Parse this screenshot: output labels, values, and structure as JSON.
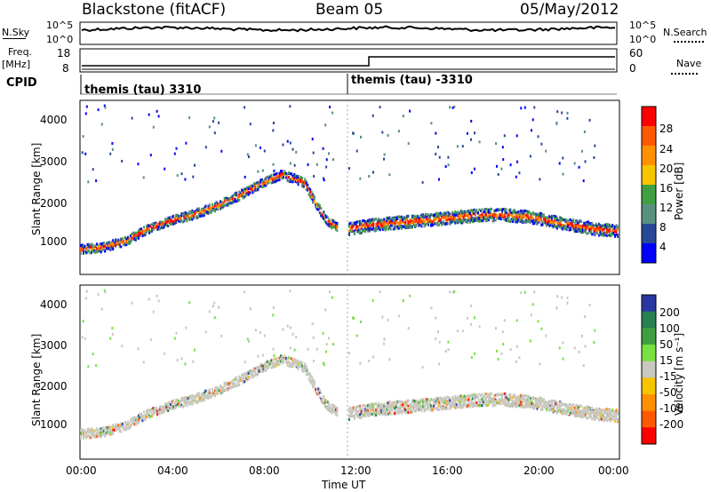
{
  "header": {
    "station": "Blackstone (fitACF)",
    "beam": "Beam 05",
    "date": "05/May/2012"
  },
  "top_panels": {
    "nsky_label": "N.Sky",
    "nsearch_label": "N.Search",
    "noise_ticks_left": [
      "10^5",
      "10^0"
    ],
    "noise_ticks_right": [
      "10^5",
      "10^0"
    ],
    "freq_label": "Freq.",
    "freq_unit": "[MHz]",
    "freq_ticks": [
      "18",
      "8"
    ],
    "nave_label": "Nave",
    "nave_ticks": [
      "60",
      "0"
    ],
    "cpid_label": "CPID",
    "cpid_segments": [
      "themis (tau) 3310",
      "themis (tau) -3310"
    ]
  },
  "panels": {
    "y_label": "Slant Range [km]",
    "y_ticks": [
      "4000",
      "3000",
      "2000",
      "1000"
    ],
    "x_ticks": [
      "00:00",
      "04:00",
      "08:00",
      "12:00",
      "16:00",
      "20:00",
      "00:00"
    ],
    "x_label": "Time UT"
  },
  "colorbars": {
    "power": {
      "label": "Power [dB]",
      "ticks": [
        "28",
        "24",
        "20",
        "16",
        "12",
        "8",
        "4"
      ],
      "colors": [
        "#ff0000",
        "#ff5a00",
        "#ff9000",
        "#f7c400",
        "#40a040",
        "#5a9080",
        "#284898",
        "#0000ff"
      ]
    },
    "velocity": {
      "label": "Velocity [m s⁻¹]",
      "ticks": [
        "200",
        "100",
        "50",
        "15",
        "-15",
        "-50",
        "-100",
        "-200"
      ],
      "colors": [
        "#2838a0",
        "#288050",
        "#40a040",
        "#78e040",
        "#c8c8c0",
        "#f7c400",
        "#ff9000",
        "#ff5a00",
        "#ff0000"
      ]
    }
  },
  "chart_data": {
    "type": "heatmap",
    "x_range_hours": [
      0,
      24
    ],
    "y_range_km": [
      200,
      4500
    ],
    "scatter_bands_km": [
      {
        "t": [
          0.0,
          1.0,
          2.0,
          3.0,
          4.0,
          5.0,
          6.0,
          7.0,
          8.0,
          9.0,
          10.0,
          10.5,
          11.0,
          11.5
        ],
        "range": [
          850,
          900,
          1050,
          1350,
          1550,
          1700,
          1900,
          2150,
          2450,
          2700,
          2500,
          2000,
          1550,
          1400
        ]
      },
      {
        "t": [
          12.0,
          13.0,
          14.0,
          15.0,
          16.0,
          17.0,
          18.0,
          19.0,
          20.0,
          21.0,
          22.0,
          23.0,
          24.0
        ],
        "range": [
          1350,
          1450,
          1500,
          1550,
          1600,
          1650,
          1700,
          1700,
          1650,
          1550,
          1450,
          1350,
          1300
        ]
      }
    ],
    "cpid_change_time": "12:00"
  }
}
